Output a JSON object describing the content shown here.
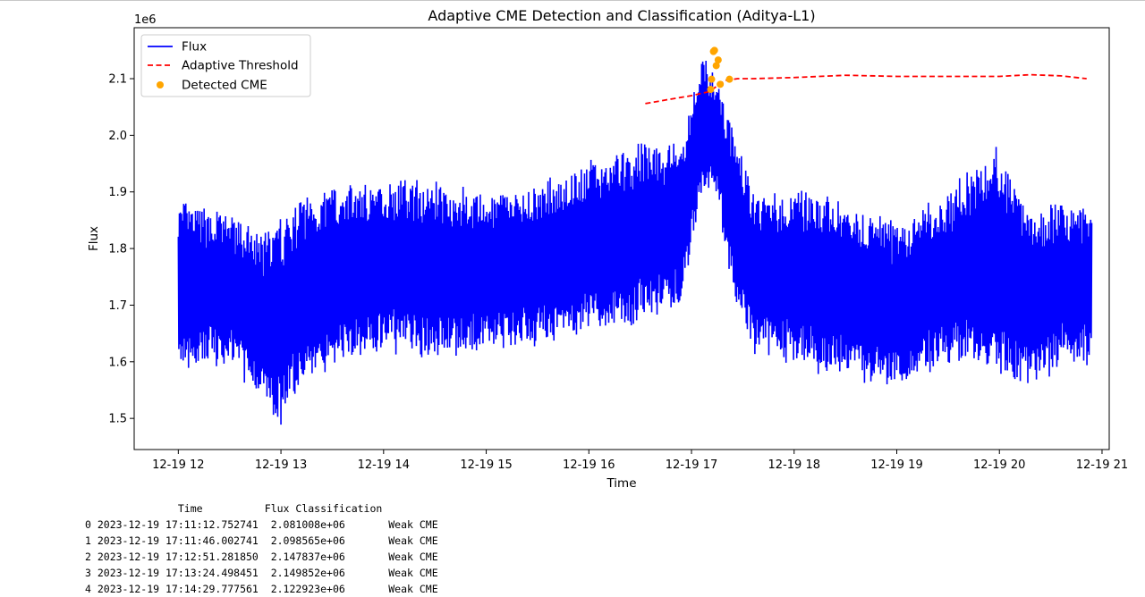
{
  "chart_data": {
    "type": "line",
    "title": "Adaptive CME Detection and Classification (Aditya-L1)",
    "xlabel": "Time",
    "ylabel": "Flux",
    "y_offset_label": "1e6",
    "xlim": [
      11.57,
      21.07
    ],
    "ylim": [
      1.445,
      2.19
    ],
    "x_ticks": [
      12,
      13,
      14,
      15,
      16,
      17,
      18,
      19,
      20,
      21
    ],
    "x_tick_labels": [
      "12-19 12",
      "12-19 13",
      "12-19 14",
      "12-19 15",
      "12-19 16",
      "12-19 17",
      "12-19 18",
      "12-19 19",
      "12-19 20",
      "12-19 21"
    ],
    "y_ticks": [
      1.5,
      1.6,
      1.7,
      1.8,
      1.9,
      2.0,
      2.1
    ],
    "y_tick_labels": [
      "1.5",
      "1.6",
      "1.7",
      "1.8",
      "1.9",
      "2.0",
      "2.1"
    ],
    "grid": false,
    "legend_position": "top-left",
    "series": [
      {
        "name": "Flux",
        "color": "#0000ff",
        "style": "solid",
        "envelope_hours": [
          12.0,
          12.5,
          12.8,
          13.0,
          13.2,
          13.5,
          14.0,
          14.5,
          15.0,
          15.5,
          16.0,
          16.5,
          16.9,
          17.1,
          17.25,
          17.4,
          17.6,
          18.0,
          18.5,
          19.0,
          19.5,
          20.0,
          20.3,
          20.6,
          20.9
        ],
        "envelope_low": [
          1.58,
          1.6,
          1.54,
          1.49,
          1.56,
          1.6,
          1.62,
          1.61,
          1.62,
          1.63,
          1.65,
          1.67,
          1.7,
          1.9,
          1.9,
          1.72,
          1.62,
          1.6,
          1.57,
          1.56,
          1.6,
          1.58,
          1.55,
          1.6,
          1.6
        ],
        "envelope_high": [
          1.88,
          1.86,
          1.82,
          1.85,
          1.89,
          1.91,
          1.92,
          1.92,
          1.89,
          1.91,
          1.95,
          1.98,
          1.99,
          2.14,
          2.1,
          2.02,
          1.9,
          1.9,
          1.88,
          1.84,
          1.9,
          1.98,
          1.86,
          1.88,
          1.87
        ]
      },
      {
        "name": "Adaptive Threshold",
        "color": "#ff0000",
        "style": "dashed",
        "x": [
          16.55,
          16.8,
          17.0,
          17.17,
          17.25,
          17.33,
          17.45,
          17.6,
          18.0,
          18.5,
          19.0,
          19.5,
          20.0,
          20.3,
          20.6,
          20.85
        ],
        "y": [
          2.056,
          2.064,
          2.07,
          2.077,
          2.087,
          2.097,
          2.1,
          2.1,
          2.102,
          2.106,
          2.104,
          2.104,
          2.104,
          2.107,
          2.105,
          2.1
        ]
      },
      {
        "name": "Detected CME",
        "color": "#ffa500",
        "style": "scatter",
        "x": [
          17.187,
          17.196,
          17.214,
          17.224,
          17.241,
          17.26,
          17.28,
          17.37
        ],
        "y": [
          2.081,
          2.099,
          2.148,
          2.15,
          2.123,
          2.133,
          2.09,
          2.099
        ]
      }
    ]
  },
  "table": {
    "header": "               Time          Flux Classification",
    "rows": [
      "0 2023-12-19 17:11:12.752741  2.081008e+06       Weak CME",
      "1 2023-12-19 17:11:46.002741  2.098565e+06       Weak CME",
      "2 2023-12-19 17:12:51.281850  2.147837e+06       Weak CME",
      "3 2023-12-19 17:13:24.498451  2.149852e+06       Weak CME",
      "4 2023-12-19 17:14:29.777561  2.122923e+06       Weak CME"
    ]
  }
}
